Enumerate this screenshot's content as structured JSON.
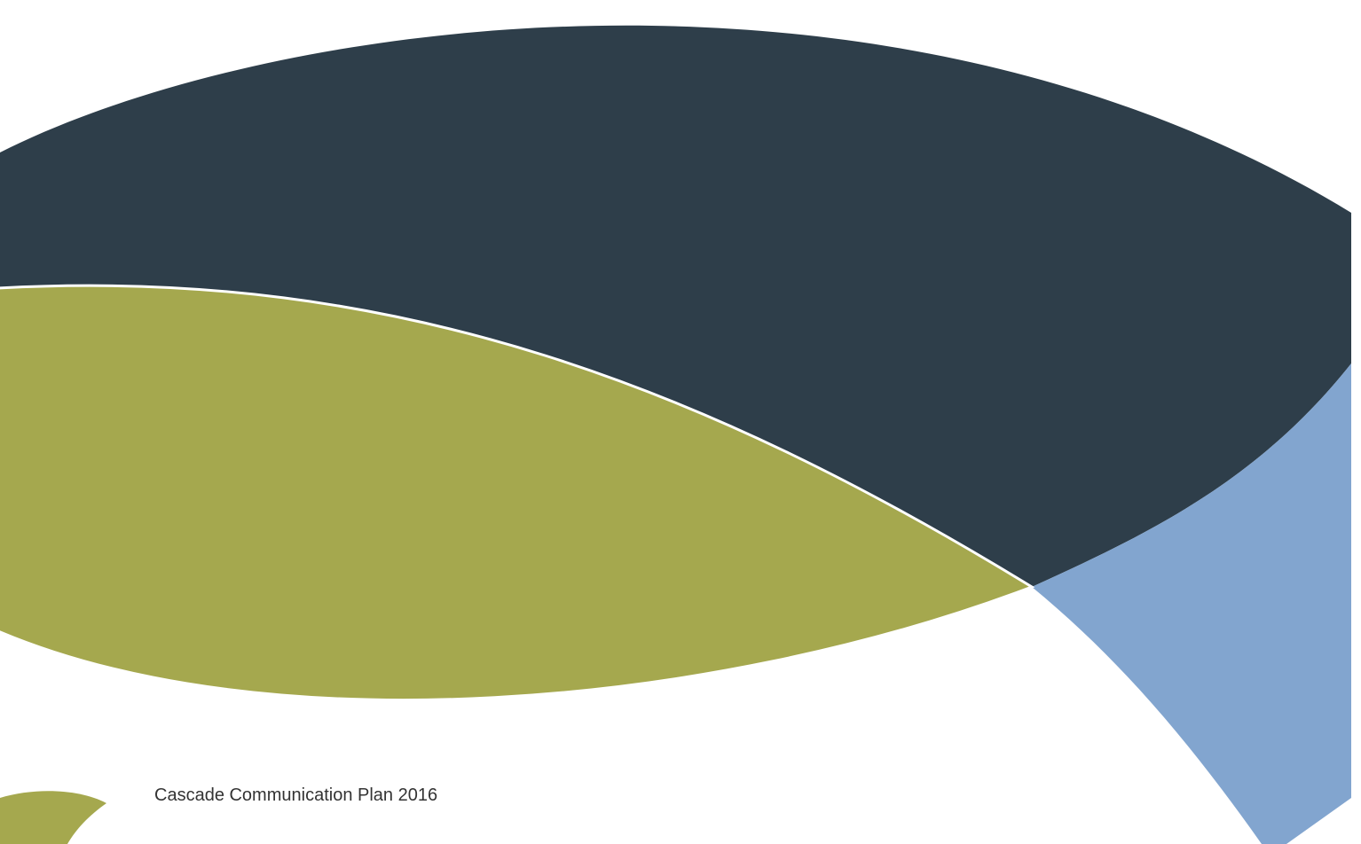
{
  "title": "Cascade Communication Plan 2016"
}
